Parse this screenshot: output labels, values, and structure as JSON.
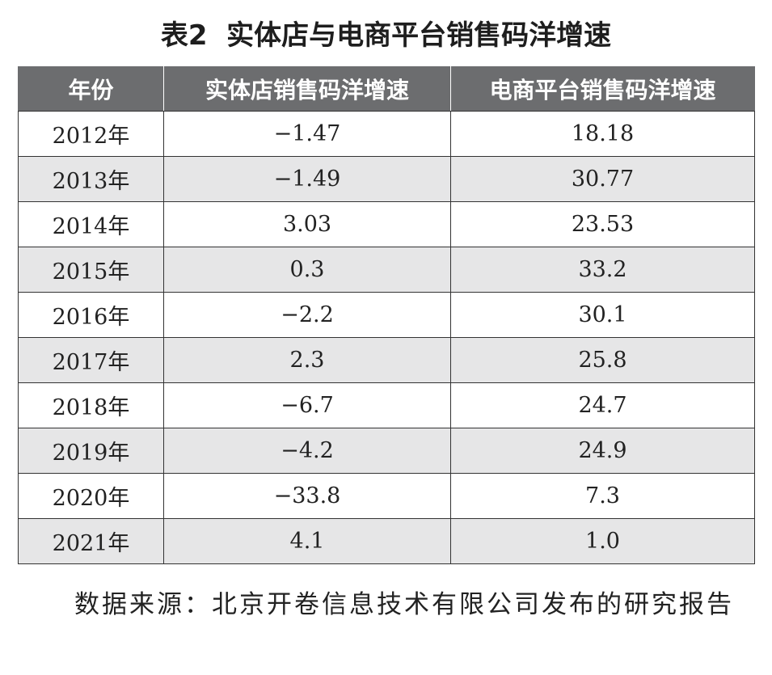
{
  "title": "表2  实体店与电商平台销售码洋增速",
  "table": {
    "header": [
      "年份",
      "实体店销售码洋增速",
      "电商平台销售码洋增速"
    ],
    "rows": [
      [
        "2012年",
        "−1.47",
        "18.18"
      ],
      [
        "2013年",
        "−1.49",
        "30.77"
      ],
      [
        "2014年",
        "3.03",
        "23.53"
      ],
      [
        "2015年",
        "0.3",
        "33.2"
      ],
      [
        "2016年",
        "−2.2",
        "30.1"
      ],
      [
        "2017年",
        "2.3",
        "25.8"
      ],
      [
        "2018年",
        "−6.7",
        "24.7"
      ],
      [
        "2019年",
        "−4.2",
        "24.9"
      ],
      [
        "2020年",
        "−33.8",
        "7.3"
      ],
      [
        "2021年",
        "4.1",
        "1.0"
      ]
    ]
  },
  "source": "数据来源：北京开卷信息技术有限公司发布的研究报告"
}
